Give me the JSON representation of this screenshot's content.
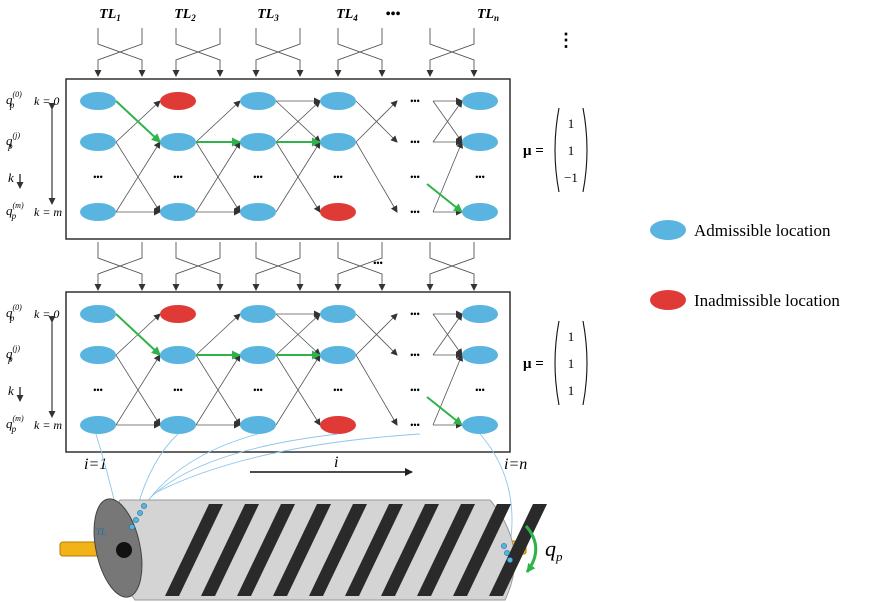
{
  "top_labels": [
    "TL",
    "TL",
    "TL",
    "TL",
    "•••",
    "TL"
  ],
  "top_label_subs": [
    "1",
    "2",
    "3",
    "4",
    "",
    "n"
  ],
  "ellipsis": "•••",
  "vertical_ellipsis": "⋮",
  "panels": [
    {
      "row_labels": {
        "q": "q",
        "p": "p",
        "sup_top": "(0)",
        "sup_mid": "(j)",
        "sup_bot": "(m)",
        "k0": "k = 0",
        "km": "k = m",
        "k": "k"
      },
      "mu_label": "μ =",
      "mu_vector": [
        "1",
        "1",
        "−1"
      ]
    },
    {
      "row_labels": {
        "q": "q",
        "p": "p",
        "sup_top": "(0)",
        "sup_mid": "(j)",
        "sup_bot": "(m)",
        "k0": "k = 0",
        "km": "k = m",
        "k": "k"
      },
      "mu_label": "μ =",
      "mu_vector": [
        "1",
        "1",
        "1"
      ]
    }
  ],
  "legend": [
    {
      "label": "Admissible location",
      "color": "#5ab4e0"
    },
    {
      "label": "Inadmissible location",
      "color": "#e03a36"
    }
  ],
  "axis": {
    "i_start": "i=1",
    "i_end": "i=n",
    "i": "i"
  },
  "rotation_label": {
    "q": "q",
    "sub": "p"
  },
  "colors": {
    "admissible": "#5ab4e0",
    "inadmissible": "#e03a36",
    "path": "#2db34a",
    "rod": "#f2b318",
    "cylinder": "#d4d4d4",
    "stripe": "#2a2a2a"
  }
}
